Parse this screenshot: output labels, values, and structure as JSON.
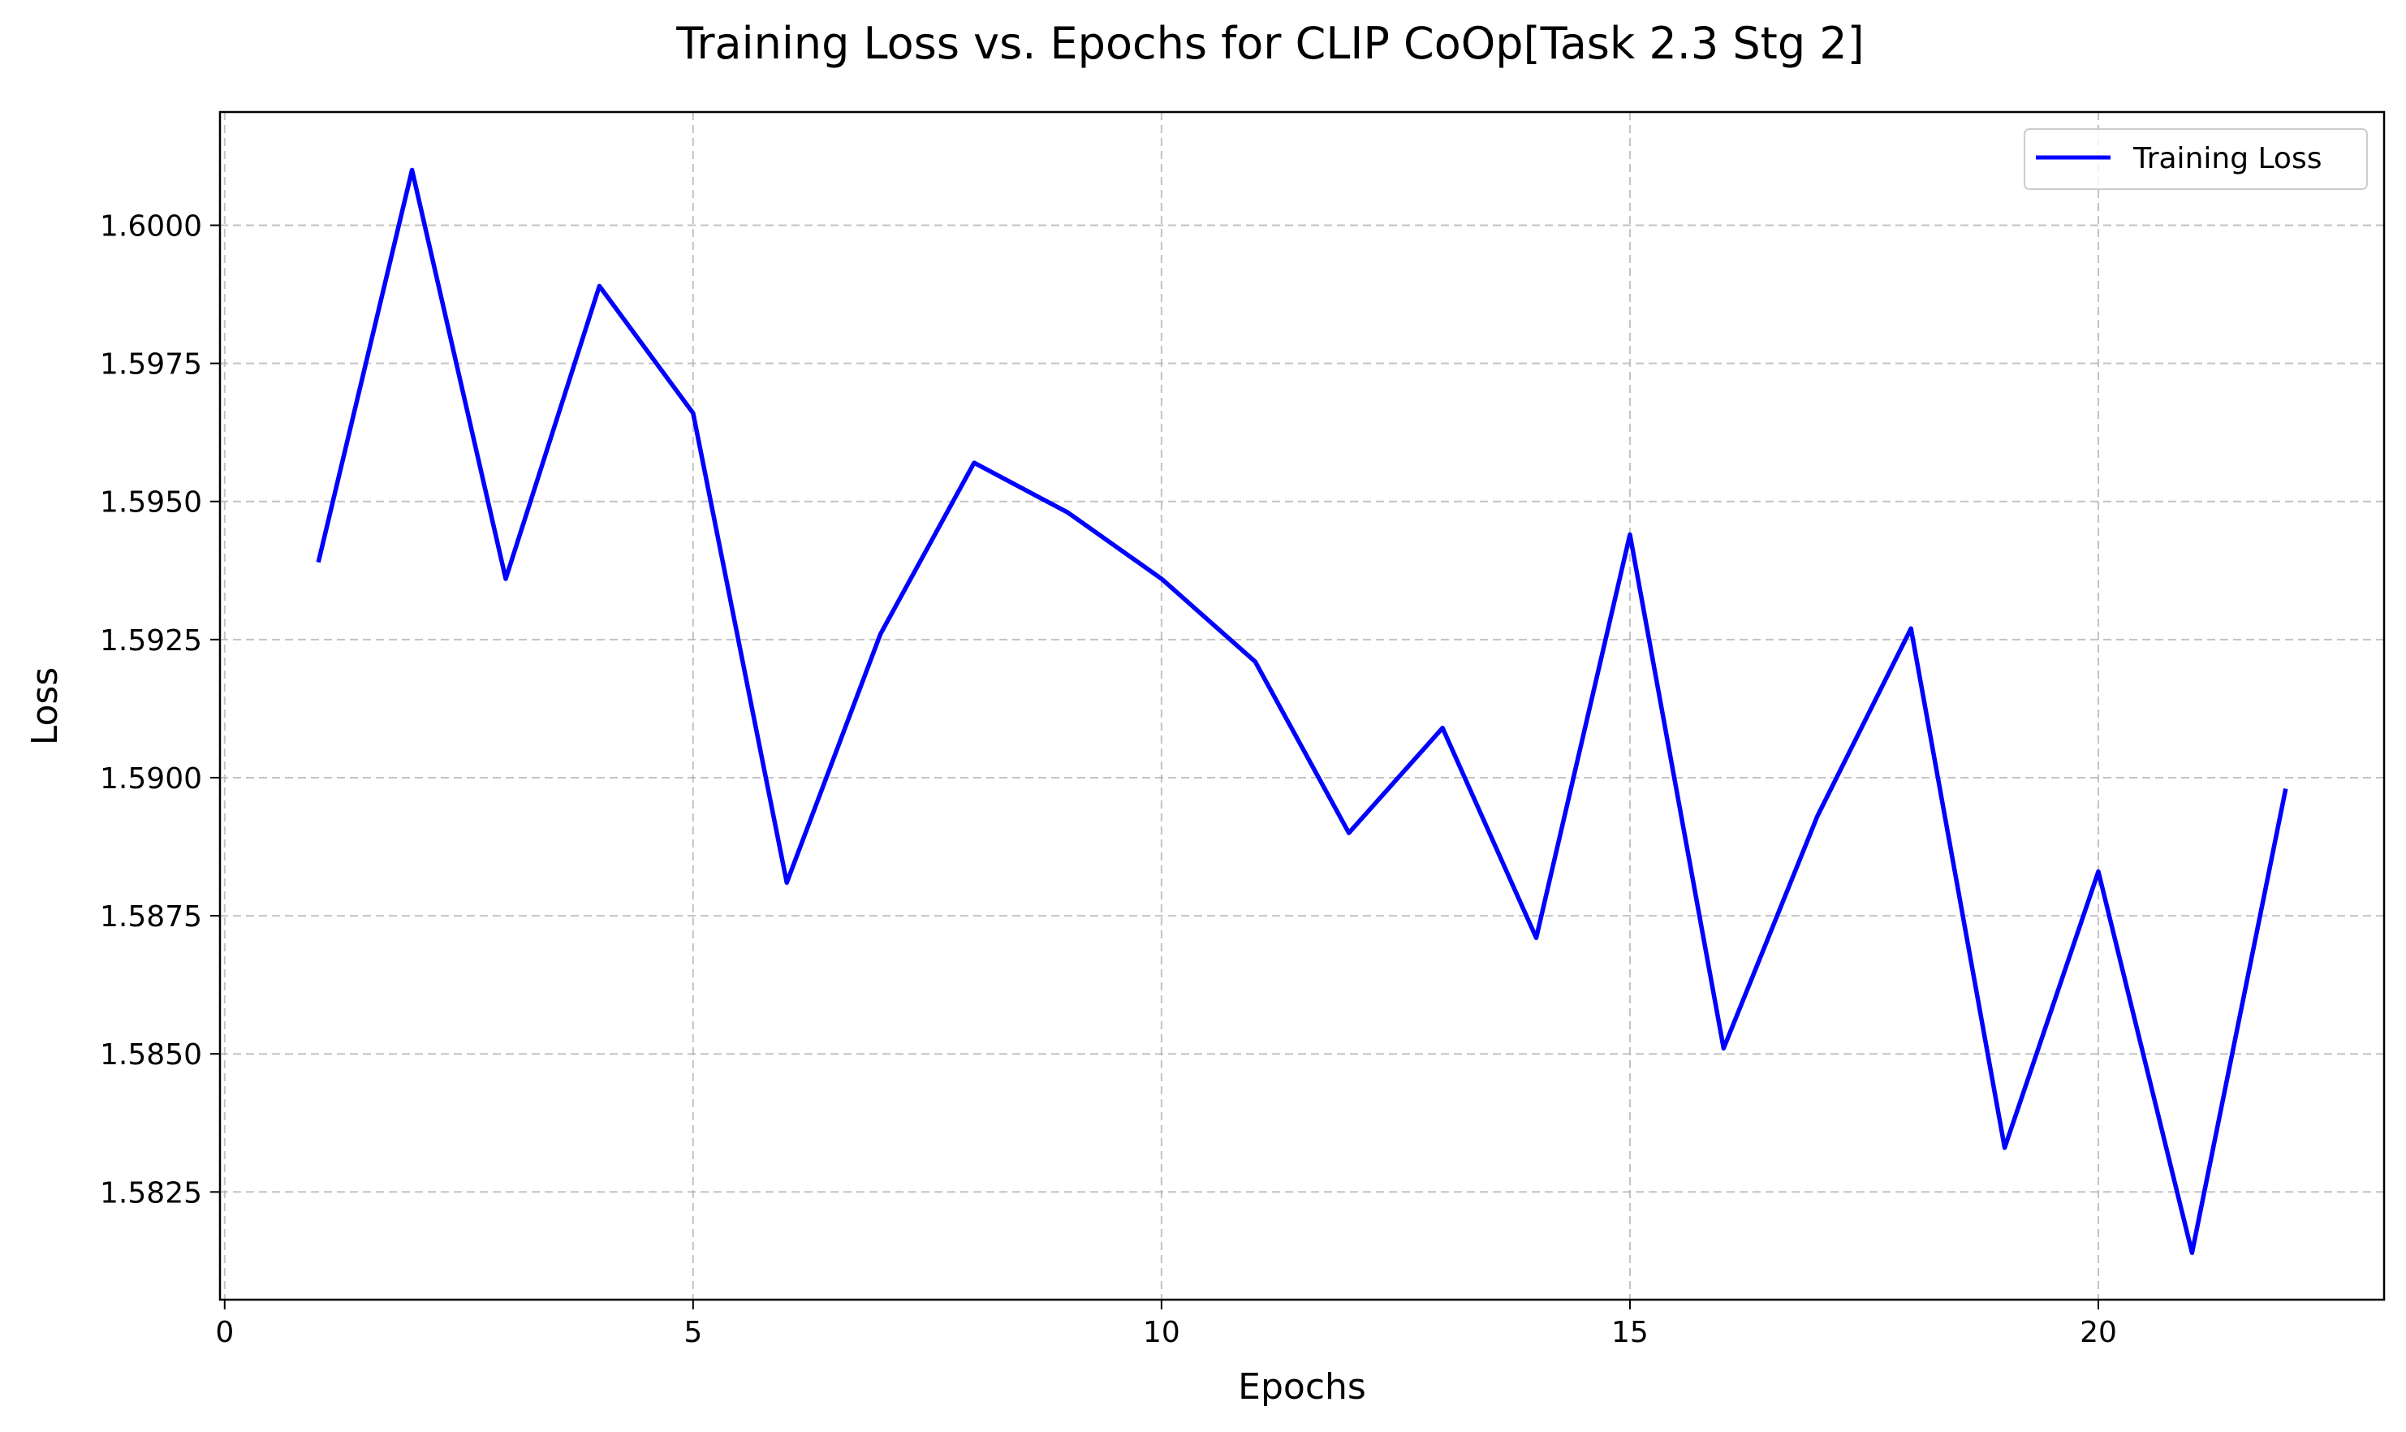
{
  "chart_data": {
    "type": "line",
    "title": "Training Loss vs. Epochs for CLIP CoOp[Task 2.3 Stg 2]",
    "xlabel": "Epochs",
    "ylabel": "Loss",
    "xlim": [
      -0.05,
      23.05
    ],
    "ylim": [
      1.58055,
      1.60205
    ],
    "xticks": [
      0,
      5,
      10,
      15,
      20
    ],
    "xtick_labels": [
      "0",
      "5",
      "10",
      "15",
      "20"
    ],
    "yticks": [
      1.5825,
      1.585,
      1.5875,
      1.59,
      1.5925,
      1.595,
      1.5975,
      1.6
    ],
    "ytick_labels": [
      "1.5825",
      "1.5850",
      "1.5875",
      "1.5900",
      "1.5925",
      "1.5950",
      "1.5975",
      "1.6000"
    ],
    "grid": true,
    "legend_position": "top-right",
    "series": [
      {
        "name": "Training Loss",
        "color": "#0000ff",
        "x": [
          1,
          2,
          3,
          4,
          5,
          6,
          7,
          8,
          9,
          10,
          11,
          12,
          13,
          14,
          15,
          16,
          17,
          18,
          19,
          20,
          21,
          22
        ],
        "y": [
          1.5939,
          1.601,
          1.5936,
          1.5989,
          1.5966,
          1.5881,
          1.5926,
          1.5957,
          1.5948,
          1.5936,
          1.5921,
          1.589,
          1.5909,
          1.5871,
          1.5944,
          1.5851,
          1.5893,
          1.5927,
          1.5833,
          1.5883,
          1.5814,
          1.5898
        ]
      }
    ]
  }
}
